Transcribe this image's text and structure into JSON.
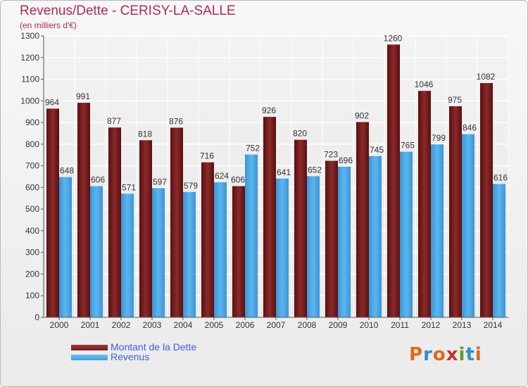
{
  "header": {
    "title": "Revenus/Dette - CERISY-LA-SALLE",
    "subtitle": "(en milliers d'€)"
  },
  "legend": {
    "items": [
      {
        "label": "Montant de la Dette",
        "color": "#7a1a1a"
      },
      {
        "label": "Revenus",
        "color": "#3a9ee0"
      }
    ]
  },
  "logo": {
    "text": "Proxiti",
    "colors": [
      "#e06a1a",
      "#2a8fd0",
      "#e06a1a",
      "#c9322a",
      "#5aa02a",
      "#2a8fd0",
      "#e06a1a"
    ]
  },
  "chart_data": {
    "type": "bar",
    "title": "Revenus/Dette - CERISY-LA-SALLE",
    "subtitle": "(en milliers d'€)",
    "categories": [
      "2000",
      "2001",
      "2002",
      "2003",
      "2004",
      "2005",
      "2006",
      "2007",
      "2008",
      "2009",
      "2010",
      "2011",
      "2012",
      "2013",
      "2014"
    ],
    "series": [
      {
        "name": "Montant de la Dette",
        "color": "#7a1a1a",
        "values": [
          964,
          991,
          877,
          818,
          876,
          716,
          606,
          926,
          820,
          723,
          902,
          1260,
          1046,
          975,
          1082
        ]
      },
      {
        "name": "Revenus",
        "color": "#3a9ee0",
        "values": [
          648,
          606,
          571,
          597,
          579,
          624,
          752,
          641,
          652,
          696,
          745,
          765,
          799,
          846,
          616
        ]
      }
    ],
    "ylim": [
      0,
      1300
    ],
    "yticks": [
      0,
      100,
      200,
      300,
      400,
      500,
      600,
      700,
      800,
      900,
      1000,
      1100,
      1200,
      1300
    ],
    "grid": true,
    "legend_position": "bottom-left"
  }
}
